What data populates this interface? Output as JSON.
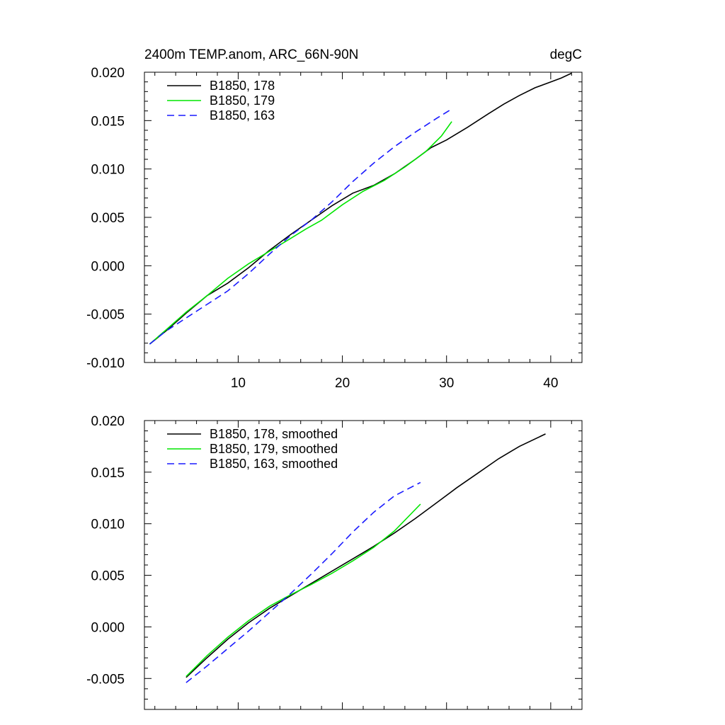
{
  "chart_data": [
    {
      "type": "line",
      "title_left": "2400m TEMP.anom, ARC_66N-90N",
      "title_right": "degC",
      "xlim": [
        1,
        43
      ],
      "ylim": [
        -0.01,
        0.02
      ],
      "xticks": [
        10,
        20,
        30,
        40
      ],
      "yticks": [
        -0.01,
        -0.005,
        0.0,
        0.005,
        0.01,
        0.015,
        0.02
      ],
      "ytick_labels": [
        "-0.010",
        "-0.005",
        "0.000",
        "0.005",
        "0.010",
        "0.015",
        "0.020"
      ],
      "legend_position": "top-left",
      "series": [
        {
          "name": "B1850, 178",
          "color": "#000000",
          "dash": "solid",
          "x": [
            1.5,
            3,
            5,
            7,
            9,
            11,
            13,
            15,
            17,
            19,
            21,
            23,
            25,
            27,
            28.5,
            30,
            32,
            34,
            35.5,
            37,
            38.5,
            40,
            41,
            42
          ],
          "y": [
            -0.0081,
            -0.0068,
            -0.0049,
            -0.0031,
            -0.0018,
            -0.0002,
            0.0016,
            0.0032,
            0.0047,
            0.0062,
            0.0075,
            0.0083,
            0.0095,
            0.011,
            0.0122,
            0.013,
            0.0143,
            0.0157,
            0.0167,
            0.0176,
            0.0184,
            0.019,
            0.0194,
            0.0199
          ]
        },
        {
          "name": "B1850, 179",
          "color": "#00e600",
          "dash": "solid",
          "x": [
            1.5,
            3,
            5,
            7,
            9,
            11,
            13,
            15,
            16.5,
            18,
            20,
            22,
            24,
            26,
            28,
            29.5,
            30.5
          ],
          "y": [
            -0.0081,
            -0.0067,
            -0.0048,
            -0.0031,
            -0.0013,
            0.0002,
            0.0015,
            0.0028,
            0.0038,
            0.0047,
            0.0063,
            0.0077,
            0.0088,
            0.0102,
            0.0118,
            0.0134,
            0.0149
          ]
        },
        {
          "name": "B1850, 163",
          "color": "#1a1aff",
          "dash": "dashed",
          "x": [
            1.5,
            3,
            5,
            7,
            9,
            11,
            13,
            15,
            17,
            19,
            21,
            23,
            25,
            27,
            29,
            30.5
          ],
          "y": [
            -0.0081,
            -0.0068,
            -0.0054,
            -0.004,
            -0.0026,
            -0.0008,
            0.0012,
            0.0031,
            0.0047,
            0.0066,
            0.0087,
            0.0106,
            0.0123,
            0.0138,
            0.0152,
            0.0162
          ]
        }
      ]
    },
    {
      "type": "line",
      "xlim": [
        1,
        43
      ],
      "ylim": [
        -0.008,
        0.02
      ],
      "xticks": [
        10,
        20,
        30,
        40
      ],
      "yticks": [
        -0.005,
        0.0,
        0.005,
        0.01,
        0.015,
        0.02
      ],
      "ytick_labels": [
        "-0.005",
        "0.000",
        "0.005",
        "0.010",
        "0.015",
        "0.020"
      ],
      "legend_position": "top-left",
      "series": [
        {
          "name": "B1850, 178, smoothed",
          "color": "#000000",
          "dash": "solid",
          "x": [
            5,
            7,
            9,
            11,
            13,
            15,
            17,
            19,
            21,
            23,
            25,
            27,
            29,
            31,
            33,
            35,
            37,
            39.5
          ],
          "y": [
            -0.0049,
            -0.003,
            -0.0012,
            0.0004,
            0.0018,
            0.003,
            0.0042,
            0.0054,
            0.0066,
            0.0078,
            0.0091,
            0.0105,
            0.012,
            0.0135,
            0.0149,
            0.0163,
            0.0175,
            0.0187
          ]
        },
        {
          "name": "B1850, 179, smoothed",
          "color": "#00e600",
          "dash": "solid",
          "x": [
            5,
            7,
            9,
            11,
            13,
            15,
            17,
            19,
            21,
            23,
            25,
            27.5
          ],
          "y": [
            -0.0048,
            -0.0028,
            -0.001,
            0.0006,
            0.002,
            0.0031,
            0.0041,
            0.0052,
            0.0064,
            0.0077,
            0.0093,
            0.0119
          ]
        },
        {
          "name": "B1850, 163, smoothed",
          "color": "#1a1aff",
          "dash": "dashed",
          "x": [
            5,
            7,
            9,
            11,
            13,
            15,
            17,
            19,
            21,
            23,
            25,
            27.5
          ],
          "y": [
            -0.0054,
            -0.0038,
            -0.0021,
            -0.0004,
            0.0014,
            0.0032,
            0.0051,
            0.0071,
            0.0092,
            0.0111,
            0.0127,
            0.014
          ]
        }
      ]
    }
  ]
}
